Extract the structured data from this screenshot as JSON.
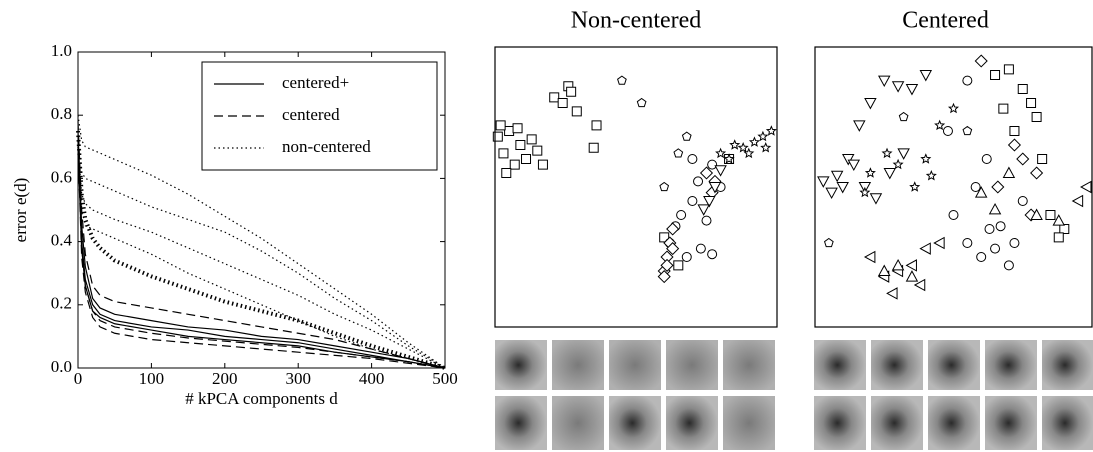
{
  "chart_data": [
    {
      "type": "line",
      "xlabel": "# kPCA components d",
      "ylabel": "error e(d)",
      "x": [
        0,
        5,
        10,
        20,
        30,
        50,
        100,
        150,
        200,
        250,
        300,
        350,
        400,
        450,
        500
      ],
      "xlim": [
        0,
        500
      ],
      "xticks": [
        0,
        100,
        200,
        300,
        400,
        500
      ],
      "ylim": [
        0,
        1
      ],
      "yticks": [
        {
          "value": 0,
          "label": "0.0"
        },
        {
          "value": 0.2,
          "label": "0.2"
        },
        {
          "value": 0.4,
          "label": "0.4"
        },
        {
          "value": 0.6,
          "label": "0.6"
        },
        {
          "value": 0.8,
          "label": "0.8"
        },
        {
          "value": 1,
          "label": "1.0"
        }
      ],
      "legend": "upper right",
      "color": "#000000",
      "series": [
        {
          "name": "centered+",
          "dash": "solid",
          "width": 1.2,
          "values": [
            0.75,
            0.45,
            0.32,
            0.22,
            0.19,
            0.17,
            0.15,
            0.13,
            0.12,
            0.1,
            0.09,
            0.07,
            0.05,
            0.03,
            0
          ]
        },
        {
          "dash": "solid",
          "width": 1.2,
          "values": [
            0.72,
            0.4,
            0.28,
            0.2,
            0.17,
            0.15,
            0.13,
            0.12,
            0.1,
            0.09,
            0.08,
            0.06,
            0.04,
            0.02,
            0
          ]
        },
        {
          "dash": "solid",
          "width": 1.2,
          "values": [
            0.7,
            0.38,
            0.26,
            0.18,
            0.16,
            0.14,
            0.12,
            0.1,
            0.09,
            0.08,
            0.07,
            0.05,
            0.035,
            0.02,
            0
          ]
        },
        {
          "name": "centered",
          "dash": "dashed",
          "width": 1.2,
          "values": [
            0.78,
            0.5,
            0.36,
            0.26,
            0.23,
            0.21,
            0.19,
            0.17,
            0.15,
            0.13,
            0.11,
            0.09,
            0.06,
            0.03,
            0
          ]
        },
        {
          "dash": "dashed",
          "width": 1.2,
          "values": [
            0.7,
            0.35,
            0.24,
            0.16,
            0.13,
            0.11,
            0.09,
            0.08,
            0.07,
            0.06,
            0.05,
            0.04,
            0.03,
            0.015,
            0
          ]
        },
        {
          "dash": "dashed",
          "width": 1.2,
          "values": [
            0.72,
            0.38,
            0.26,
            0.18,
            0.15,
            0.13,
            0.11,
            0.095,
            0.085,
            0.075,
            0.065,
            0.05,
            0.035,
            0.02,
            0
          ]
        },
        {
          "name": "non-centered",
          "dash": "dotted",
          "width": 1.2,
          "values": [
            0.8,
            0.72,
            0.7,
            0.69,
            0.68,
            0.66,
            0.61,
            0.55,
            0.48,
            0.41,
            0.33,
            0.25,
            0.17,
            0.08,
            0
          ]
        },
        {
          "dash": "dotted",
          "width": 1.2,
          "values": [
            0.75,
            0.62,
            0.6,
            0.59,
            0.58,
            0.56,
            0.51,
            0.47,
            0.43,
            0.37,
            0.3,
            0.22,
            0.15,
            0.07,
            0
          ]
        },
        {
          "dash": "dotted",
          "width": 1.2,
          "values": [
            0.72,
            0.5,
            0.45,
            0.44,
            0.43,
            0.41,
            0.36,
            0.3,
            0.25,
            0.2,
            0.15,
            0.1,
            0.06,
            0.03,
            0
          ]
        },
        {
          "dash": "dotted",
          "width": 1.2,
          "values": [
            0.7,
            0.55,
            0.52,
            0.5,
            0.49,
            0.47,
            0.43,
            0.38,
            0.33,
            0.28,
            0.23,
            0.17,
            0.12,
            0.06,
            0
          ]
        },
        {
          "dash": "dotted",
          "width": 4,
          "values": [
            0.75,
            0.55,
            0.47,
            0.41,
            0.38,
            0.34,
            0.29,
            0.25,
            0.21,
            0.18,
            0.15,
            0.11,
            0.07,
            0.035,
            0
          ]
        }
      ]
    },
    {
      "type": "scatter",
      "title": "Non-centered",
      "xlim": [
        0,
        100
      ],
      "ylim": [
        0,
        100
      ],
      "color": "#000000",
      "series": [
        {
          "marker": "square",
          "x": [
            1,
            3,
            5,
            7,
            9,
            11,
            13,
            4,
            2,
            8,
            15,
            17,
            21,
            24,
            26,
            27,
            29,
            36,
            35,
            60,
            65,
            83
          ],
          "y": [
            68,
            62,
            70,
            58,
            65,
            60,
            67,
            55,
            72,
            71,
            63,
            58,
            82,
            80,
            86,
            84,
            77,
            72,
            64,
            32,
            22,
            60
          ]
        },
        {
          "marker": "circle",
          "x": [
            62,
            66,
            70,
            72,
            75,
            68,
            77,
            80,
            73,
            77,
            64,
            70
          ],
          "y": [
            30,
            40,
            45,
            52,
            38,
            25,
            58,
            50,
            28,
            26,
            36,
            60
          ]
        },
        {
          "marker": "diamond",
          "x": [
            60,
            61,
            62,
            63,
            61,
            60,
            63,
            75,
            78,
            77
          ],
          "y": [
            20,
            25,
            30,
            35,
            22,
            18,
            28,
            55,
            52,
            48
          ]
        },
        {
          "marker": "triangle-down",
          "x": [
            76,
            78,
            80,
            74
          ],
          "y": [
            45,
            50,
            56,
            42
          ]
        },
        {
          "marker": "pentagon",
          "x": [
            45,
            65,
            68,
            52,
            60
          ],
          "y": [
            88,
            62,
            68,
            80,
            50
          ]
        },
        {
          "marker": "star",
          "x": [
            80,
            85,
            88,
            92,
            95,
            98,
            90,
            83,
            96
          ],
          "y": [
            62,
            65,
            64,
            66,
            68,
            70,
            62,
            60,
            64
          ]
        }
      ]
    },
    {
      "type": "scatter",
      "title": "Centered",
      "xlim": [
        0,
        100
      ],
      "ylim": [
        0,
        100
      ],
      "color": "#000000",
      "series": [
        {
          "marker": "triangle-down",
          "x": [
            3,
            6,
            8,
            10,
            12,
            16,
            20,
            25,
            30,
            35,
            18,
            22,
            27,
            14,
            40,
            32
          ],
          "y": [
            52,
            48,
            54,
            50,
            60,
            72,
            80,
            88,
            86,
            85,
            50,
            46,
            55,
            58,
            90,
            62
          ]
        },
        {
          "marker": "star",
          "x": [
            20,
            26,
            30,
            36,
            40,
            45,
            50,
            18,
            42
          ],
          "y": [
            55,
            62,
            58,
            50,
            60,
            72,
            78,
            48,
            54
          ]
        },
        {
          "marker": "circle",
          "x": [
            50,
            55,
            60,
            65,
            70,
            58,
            62,
            67,
            72,
            48,
            55,
            63,
            75
          ],
          "y": [
            40,
            30,
            25,
            28,
            22,
            50,
            60,
            36,
            30,
            70,
            88,
            35,
            45
          ]
        },
        {
          "marker": "square",
          "x": [
            65,
            70,
            75,
            78,
            80,
            68,
            82,
            72,
            85,
            90,
            88
          ],
          "y": [
            90,
            92,
            85,
            80,
            75,
            78,
            60,
            70,
            40,
            35,
            32
          ]
        },
        {
          "marker": "diamond",
          "x": [
            60,
            72,
            80,
            66,
            78,
            75
          ],
          "y": [
            95,
            65,
            55,
            50,
            40,
            60
          ]
        },
        {
          "marker": "triangle-left",
          "x": [
            20,
            25,
            30,
            35,
            40,
            28,
            45,
            38,
            95,
            98
          ],
          "y": [
            25,
            18,
            20,
            22,
            28,
            12,
            30,
            15,
            45,
            50
          ]
        },
        {
          "marker": "triangle-up",
          "x": [
            25,
            30,
            35,
            60,
            65,
            70,
            80,
            88
          ],
          "y": [
            20,
            22,
            18,
            48,
            42,
            55,
            40,
            38
          ]
        },
        {
          "marker": "pentagon",
          "x": [
            5,
            32,
            55
          ],
          "y": [
            30,
            75,
            70
          ]
        }
      ]
    }
  ]
}
